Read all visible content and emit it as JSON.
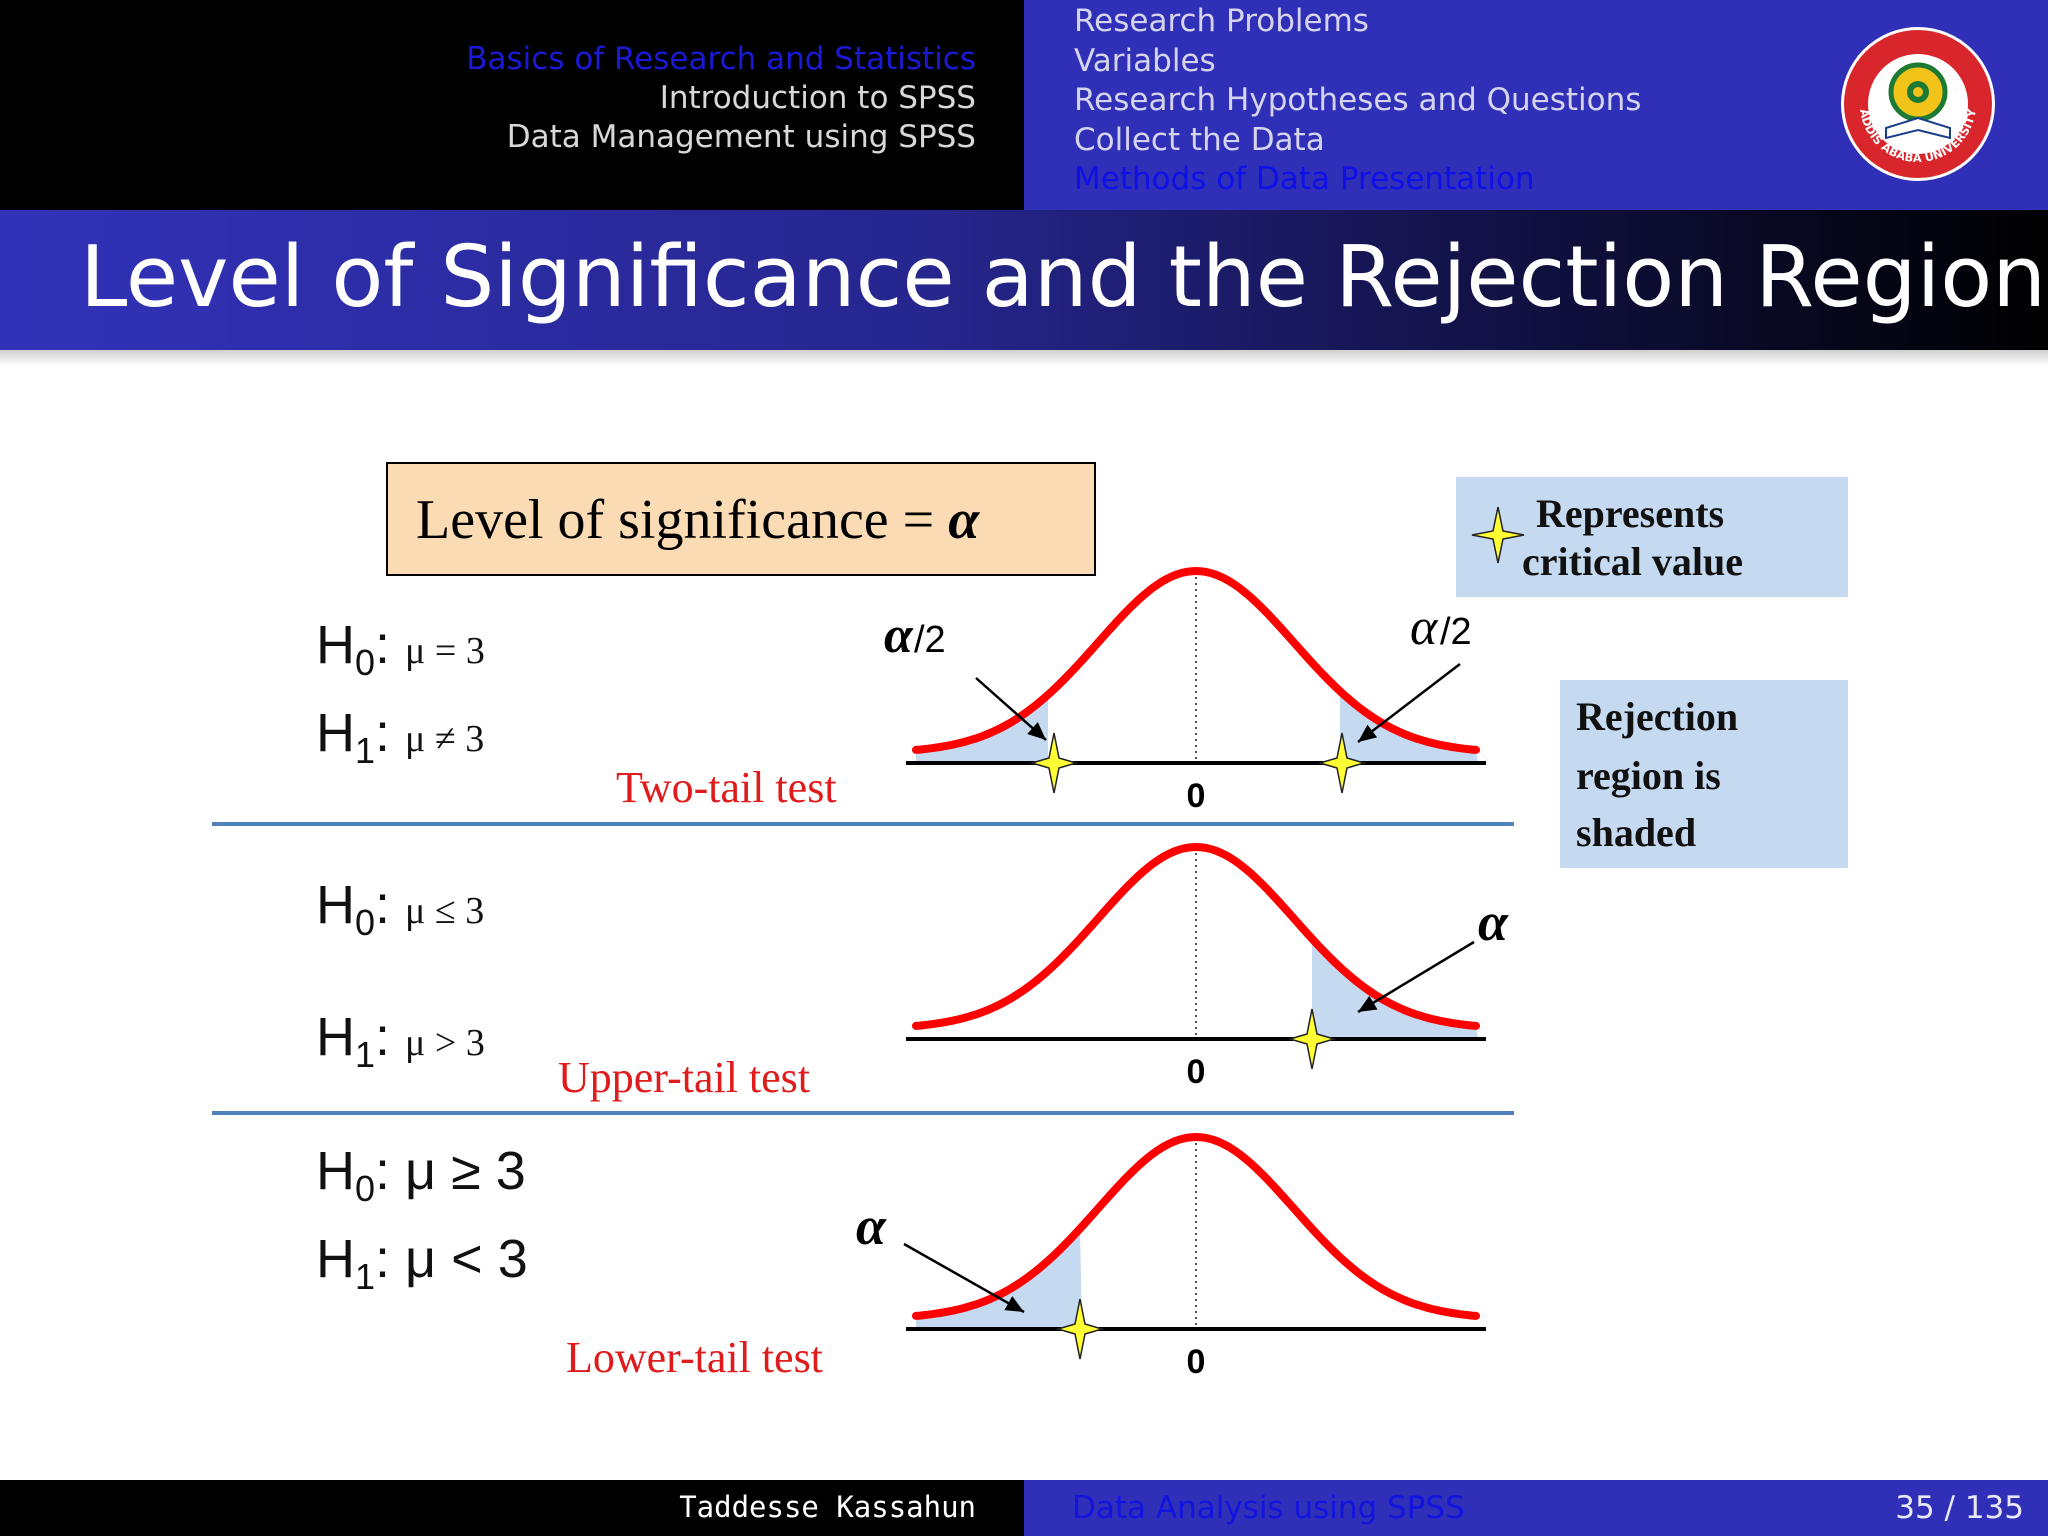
{
  "header": {
    "sections": [
      "Basics of Research and Statistics",
      "Introduction to SPSS",
      "Data Management using SPSS"
    ],
    "subsections": [
      "Research Problems",
      "Variables",
      "Research Hypotheses and Questions",
      "Collect the Data",
      "Methods of Data Presentation"
    ],
    "logo_text": "ADDIS ABABA UNIVERSITY"
  },
  "slide": {
    "title": "Level of Significance and the Rejection Region"
  },
  "diagram": {
    "level_label": "Level of significance = ",
    "alpha": "α",
    "alpha_half": "α/2",
    "legend_critical": [
      "Represents",
      "critical value"
    ],
    "legend_rejection": [
      "Rejection",
      "region is",
      "shaded"
    ],
    "tests": [
      {
        "h0_sym": "μ = 3",
        "h1_sym": "μ ≠ 3",
        "label": "Two-tail test",
        "zero": "0"
      },
      {
        "h0_sym": "μ ≤ 3",
        "h1_sym": "μ > 3",
        "label": "Upper-tail test",
        "zero": "0"
      },
      {
        "h0_sym": "μ ≥ 3",
        "h1_sym": "μ < 3",
        "label": "Lower-tail test",
        "zero": "0"
      }
    ],
    "colors": {
      "curve": "#ff0000",
      "shade": "#c5d9f1",
      "star": "#ffff33",
      "divider": "#4f81bd"
    }
  },
  "footer": {
    "author": "Taddesse Kassahun",
    "title": "Data Analysis using SPSS",
    "page": "35 / 135"
  }
}
